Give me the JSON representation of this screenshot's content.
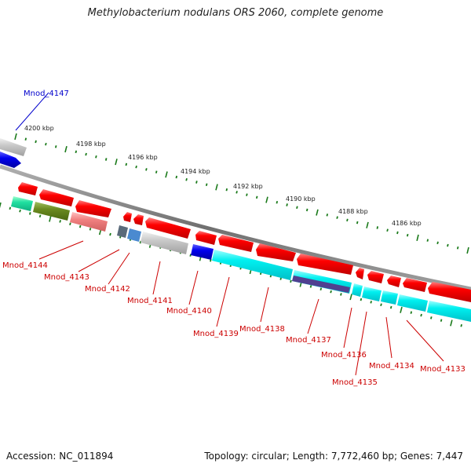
{
  "title": "Methylobacterium nodulans ORS 2060, complete genome",
  "footer": {
    "accession": "Accession: NC_011894",
    "stats": "Topology: circular; Length: 7,772,460 bp; Genes: 7,447"
  },
  "scale_labels": [
    "4200 kbp",
    "4198 kbp",
    "4196 kbp",
    "4194 kbp",
    "4192 kbp",
    "4190 kbp",
    "4188 kbp",
    "4186 kbp"
  ],
  "genes": [
    {
      "name": "Mnod_4147",
      "color": "#0000cc"
    },
    {
      "name": "Mnod_4144",
      "color": "#cc0000"
    },
    {
      "name": "Mnod_4143",
      "color": "#cc0000"
    },
    {
      "name": "Mnod_4142",
      "color": "#cc0000"
    },
    {
      "name": "Mnod_4141",
      "color": "#cc0000"
    },
    {
      "name": "Mnod_4140",
      "color": "#cc0000"
    },
    {
      "name": "Mnod_4139",
      "color": "#cc0000"
    },
    {
      "name": "Mnod_4138",
      "color": "#cc0000"
    },
    {
      "name": "Mnod_4137",
      "color": "#cc0000"
    },
    {
      "name": "Mnod_4136",
      "color": "#cc0000"
    },
    {
      "name": "Mnod_4135",
      "color": "#cc0000"
    },
    {
      "name": "Mnod_4134",
      "color": "#cc0000"
    },
    {
      "name": "Mnod_4133",
      "color": "#cc0000"
    }
  ],
  "colors": {
    "red": "#ff0000",
    "cyan": "#00ffff",
    "blue": "#0000ee",
    "grey": "#c0c0c0",
    "backbone": "#888888",
    "tick": "#1a7a1a"
  }
}
